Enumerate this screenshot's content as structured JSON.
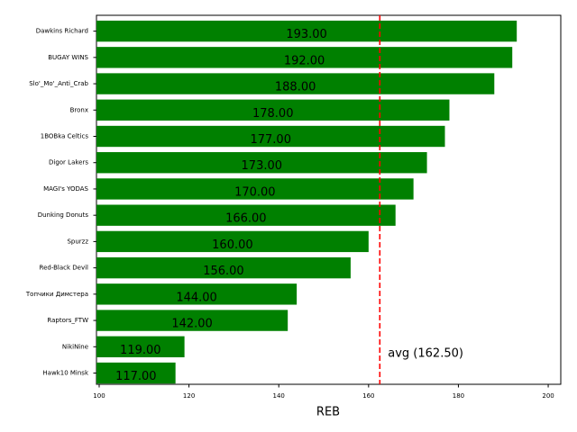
{
  "chart_data": {
    "type": "barh",
    "categories": [
      "Dawkins Richard",
      "BUGAY WINS",
      "Slo'_Mo'_Anti_Crab",
      "Bronx",
      "1BOBka Celtics",
      "Digor Lakers",
      "MAGI's YODAS",
      "Dunking Donuts",
      "Spurzz",
      "Red-Black Devil",
      "Топчики Димстера",
      "Raptors_FTW",
      "NikiNine",
      "Hawk10 Minsk"
    ],
    "values": [
      193,
      192,
      188,
      178,
      177,
      173,
      170,
      166,
      160,
      156,
      144,
      142,
      119,
      117
    ],
    "value_labels": [
      "193.00",
      "192.00",
      "188.00",
      "178.00",
      "177.00",
      "173.00",
      "170.00",
      "166.00",
      "160.00",
      "156.00",
      "144.00",
      "142.00",
      "119.00",
      "117.00"
    ],
    "color": "#008000",
    "xlabel": "REB",
    "xlim": [
      99.4,
      202.8
    ],
    "xticks": [
      100,
      120,
      140,
      160,
      180,
      200
    ],
    "avg": 162.5,
    "avg_color": "#ff0000",
    "avg_label": "avg (162.50)"
  }
}
